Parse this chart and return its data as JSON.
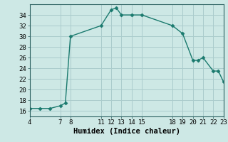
{
  "x": [
    4,
    5,
    6,
    7,
    7.5,
    8,
    11,
    12,
    12.5,
    13,
    14,
    15,
    18,
    19,
    20,
    20.5,
    21,
    22,
    22.5,
    23
  ],
  "y": [
    16.5,
    16.5,
    16.5,
    17,
    17.5,
    30,
    32,
    35,
    35.3,
    34,
    34,
    34,
    32,
    30.5,
    25.5,
    25.5,
    26,
    23.5,
    23.5,
    21.5
  ],
  "line_color": "#1a7a6e",
  "marker": "D",
  "marker_size": 2.5,
  "bg_color": "#cde8e5",
  "grid_color": "#aacccc",
  "xlabel": "Humidex (Indice chaleur)",
  "xlim": [
    4,
    23
  ],
  "ylim": [
    15,
    36
  ],
  "xticks": [
    4,
    7,
    8,
    11,
    12,
    13,
    14,
    15,
    18,
    19,
    20,
    21,
    22,
    23
  ],
  "yticks": [
    16,
    18,
    20,
    22,
    24,
    26,
    28,
    30,
    32,
    34
  ],
  "xlabel_fontsize": 7.5,
  "tick_fontsize": 6.5
}
